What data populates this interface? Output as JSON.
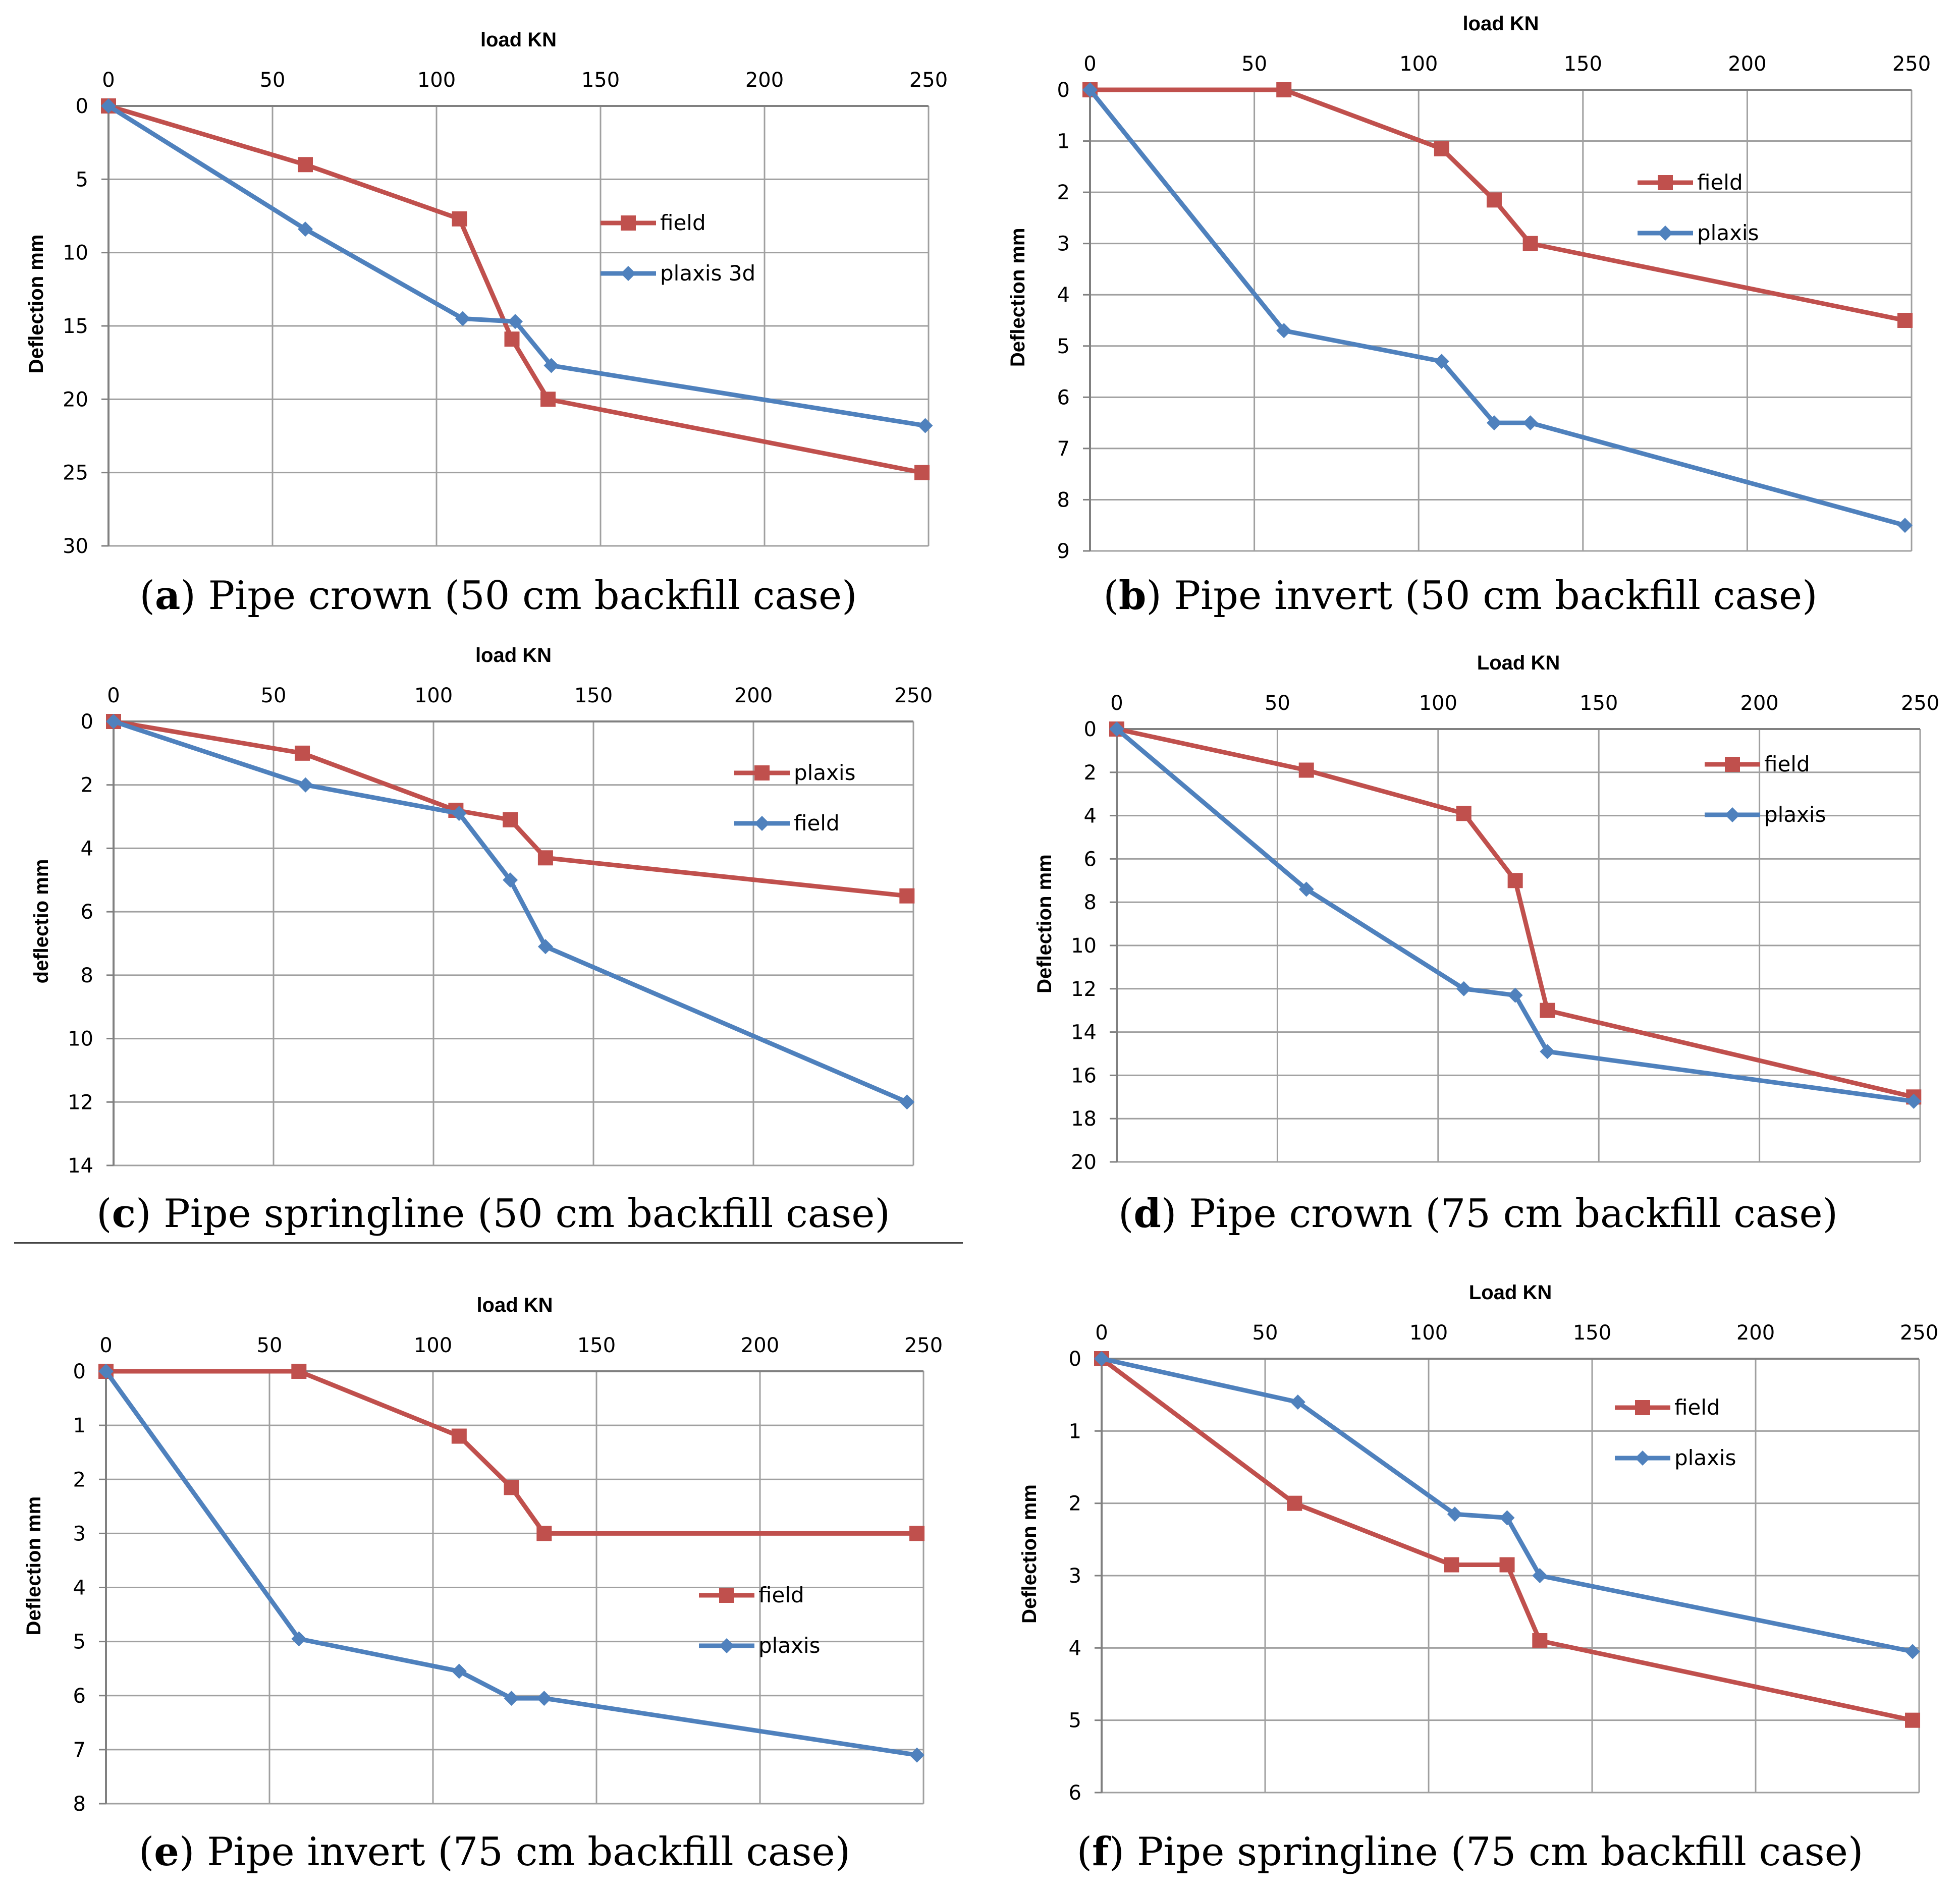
{
  "colors": {
    "field": "#c0504d",
    "plaxis": "#4f81bd",
    "grid": "#a0a0a0"
  },
  "panels": [
    {
      "caption": {
        "letter": "a",
        "text": "Pipe crown (50 cm backfill case)"
      },
      "chart_data": {
        "type": "line",
        "title": "",
        "xlabel": "load KN",
        "ylabel": "Deflection mm",
        "xlim": [
          0,
          250
        ],
        "ylim": [
          0,
          30
        ],
        "y_inverted": true,
        "x_ticks": [
          "0",
          "50",
          "100",
          "150",
          "200",
          "250"
        ],
        "y_ticks": [
          "0",
          "5",
          "10",
          "15",
          "20",
          "25",
          "30"
        ],
        "legend_position": "center-right",
        "series": [
          {
            "name": "field",
            "color": "#c0504d",
            "marker": "square",
            "x": [
              0,
              60,
              107,
              123,
              134,
              248
            ],
            "y": [
              0,
              4,
              7.7,
              15.9,
              20,
              25
            ]
          },
          {
            "name": "plaxis 3d",
            "color": "#4f81bd",
            "marker": "diamond",
            "x": [
              0,
              60,
              108,
              124,
              135,
              249
            ],
            "y": [
              0,
              8.4,
              14.5,
              14.7,
              17.7,
              21.8
            ]
          }
        ]
      }
    },
    {
      "caption": {
        "letter": "b",
        "text": "Pipe invert (50 cm backfill case)"
      },
      "chart_data": {
        "type": "line",
        "title": "",
        "xlabel": "load KN",
        "ylabel": "Deflection mm",
        "xlim": [
          0,
          250
        ],
        "ylim": [
          0,
          9
        ],
        "y_inverted": true,
        "x_ticks": [
          "0",
          "50",
          "100",
          "150",
          "200",
          "250"
        ],
        "y_ticks": [
          "0",
          "1",
          "2",
          "3",
          "4",
          "5",
          "6",
          "7",
          "8",
          "9"
        ],
        "legend_position": "center-right",
        "series": [
          {
            "name": "field",
            "color": "#c0504d",
            "marker": "square",
            "x": [
              0,
              59,
              107,
              123,
              134,
              248
            ],
            "y": [
              0,
              0,
              1.15,
              2.15,
              3,
              4.5
            ]
          },
          {
            "name": "plaxis",
            "color": "#4f81bd",
            "marker": "diamond",
            "x": [
              0,
              59,
              107,
              123,
              134,
              248
            ],
            "y": [
              0,
              4.7,
              5.3,
              6.5,
              6.5,
              8.5
            ]
          }
        ]
      }
    },
    {
      "caption": {
        "letter": "c",
        "text": "Pipe springline (50 cm backfill case)"
      },
      "chart_data": {
        "type": "line",
        "title": "",
        "xlabel": "load KN",
        "ylabel": "deflectio mm",
        "xlim": [
          0,
          250
        ],
        "ylim": [
          0,
          14
        ],
        "y_inverted": true,
        "x_ticks": [
          "0",
          "50",
          "100",
          "150",
          "200",
          "250"
        ],
        "y_ticks": [
          "0",
          "2",
          "4",
          "6",
          "8",
          "10",
          "12",
          "14"
        ],
        "legend_position": "top-right",
        "series": [
          {
            "name": "plaxis",
            "color": "#c0504d",
            "marker": "square",
            "x": [
              0,
              59,
              107,
              124,
              135,
              248
            ],
            "y": [
              0,
              1,
              2.8,
              3.1,
              4.3,
              5.5
            ]
          },
          {
            "name": "field",
            "color": "#4f81bd",
            "marker": "diamond",
            "x": [
              0,
              60,
              108,
              124,
              135,
              248
            ],
            "y": [
              0,
              2,
              2.9,
              5,
              7.1,
              12
            ]
          }
        ]
      }
    },
    {
      "caption": {
        "letter": "d",
        "text": "Pipe crown (75 cm backfill case)"
      },
      "chart_data": {
        "type": "line",
        "title": "",
        "xlabel": "Load KN",
        "ylabel": "Deflection mm",
        "xlim": [
          0,
          250
        ],
        "ylim": [
          0,
          20
        ],
        "y_inverted": true,
        "x_ticks": [
          "0",
          "50",
          "100",
          "150",
          "200",
          "250"
        ],
        "y_ticks": [
          "0",
          "2",
          "4",
          "6",
          "8",
          "10",
          "12",
          "14",
          "16",
          "18",
          "20"
        ],
        "legend_position": "top-right",
        "series": [
          {
            "name": "field",
            "color": "#c0504d",
            "marker": "square",
            "x": [
              0,
              59,
              108,
              124,
              134,
              248
            ],
            "y": [
              0,
              1.9,
              3.9,
              7,
              13,
              17
            ]
          },
          {
            "name": "plaxis",
            "color": "#4f81bd",
            "marker": "diamond",
            "x": [
              0,
              59,
              108,
              124,
              134,
              248
            ],
            "y": [
              0,
              7.4,
              12,
              12.3,
              14.9,
              17.2
            ]
          }
        ]
      }
    },
    {
      "caption": {
        "letter": "e",
        "text": "Pipe invert (75 cm backfill case)"
      },
      "chart_data": {
        "type": "line",
        "title": "",
        "xlabel": "load KN",
        "ylabel": "Deflection mm",
        "xlim": [
          0,
          250
        ],
        "ylim": [
          0,
          8
        ],
        "y_inverted": true,
        "x_ticks": [
          "0",
          "50",
          "100",
          "150",
          "200",
          "250"
        ],
        "y_ticks": [
          "0",
          "1",
          "2",
          "3",
          "4",
          "5",
          "6",
          "7",
          "8"
        ],
        "legend_position": "center-right",
        "series": [
          {
            "name": "field",
            "color": "#c0504d",
            "marker": "square",
            "x": [
              0,
              59,
              108,
              124,
              134,
              248
            ],
            "y": [
              0,
              0,
              1.2,
              2.15,
              3,
              3
            ]
          },
          {
            "name": "plaxis",
            "color": "#4f81bd",
            "marker": "diamond",
            "x": [
              0,
              59,
              108,
              124,
              134,
              248
            ],
            "y": [
              0,
              4.95,
              5.55,
              6.05,
              6.05,
              7.1
            ]
          }
        ]
      }
    },
    {
      "caption": {
        "letter": "f",
        "text": "Pipe springline (75 cm backfill case)"
      },
      "chart_data": {
        "type": "line",
        "title": "",
        "xlabel": "Load KN",
        "ylabel": "Deflection mm",
        "xlim": [
          0,
          250
        ],
        "ylim": [
          0,
          6
        ],
        "y_inverted": true,
        "x_ticks": [
          "0",
          "50",
          "100",
          "150",
          "200",
          "250"
        ],
        "y_ticks": [
          "0",
          "1",
          "2",
          "3",
          "4",
          "5",
          "6"
        ],
        "legend_position": "top-right",
        "series": [
          {
            "name": "field",
            "color": "#c0504d",
            "marker": "square",
            "x": [
              0,
              59,
              107,
              124,
              134,
              248
            ],
            "y": [
              0,
              2,
              2.85,
              2.85,
              3.9,
              5
            ]
          },
          {
            "name": "plaxis",
            "color": "#4f81bd",
            "marker": "diamond",
            "x": [
              0,
              60,
              108,
              124,
              134,
              248
            ],
            "y": [
              0,
              0.6,
              2.15,
              2.2,
              3,
              4.05
            ]
          }
        ]
      }
    }
  ]
}
